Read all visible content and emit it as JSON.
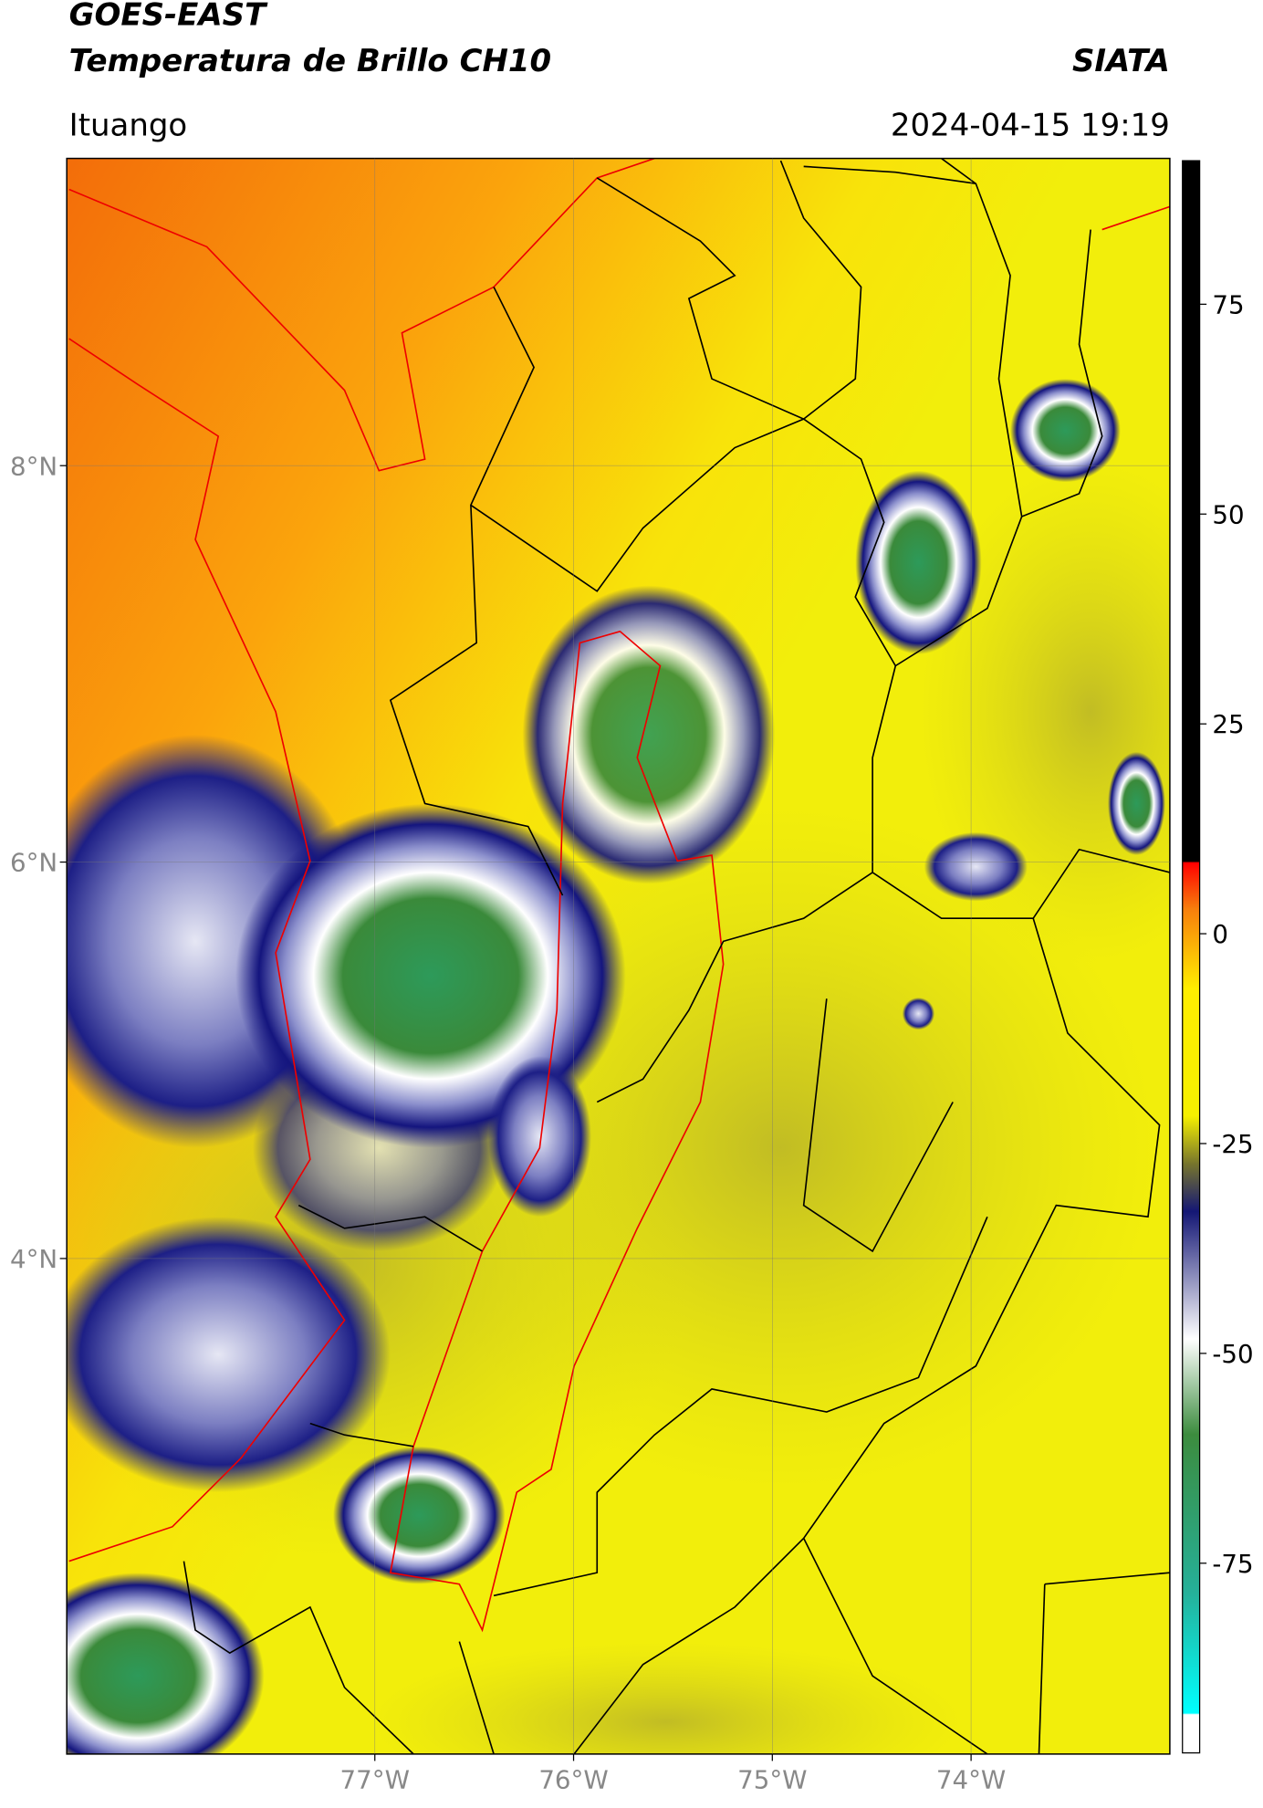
{
  "header": {
    "title_line1": "GOES-EAST",
    "title_line2": "Temperatura de Brillo CH10",
    "source": "SIATA",
    "location": "Ituango",
    "datetime": "2024-04-15 19:19"
  },
  "map": {
    "lon_range": [
      -78.55,
      -73.0
    ],
    "lat_range": [
      1.5,
      9.55
    ],
    "lon_ticks": [
      {
        "value": -77,
        "label": "77°W"
      },
      {
        "value": -76,
        "label": "76°W"
      },
      {
        "value": -75,
        "label": "75°W"
      },
      {
        "value": -74,
        "label": "74°W"
      }
    ],
    "lat_ticks": [
      {
        "value": 8,
        "label": "8°N"
      },
      {
        "value": 6,
        "label": "6°N"
      },
      {
        "value": 4,
        "label": "4°N"
      }
    ]
  },
  "colorbar": {
    "range": [
      -97.6,
      92.1
    ],
    "ticks": [
      75,
      50,
      25,
      0,
      -25,
      -50,
      -75
    ]
  }
}
